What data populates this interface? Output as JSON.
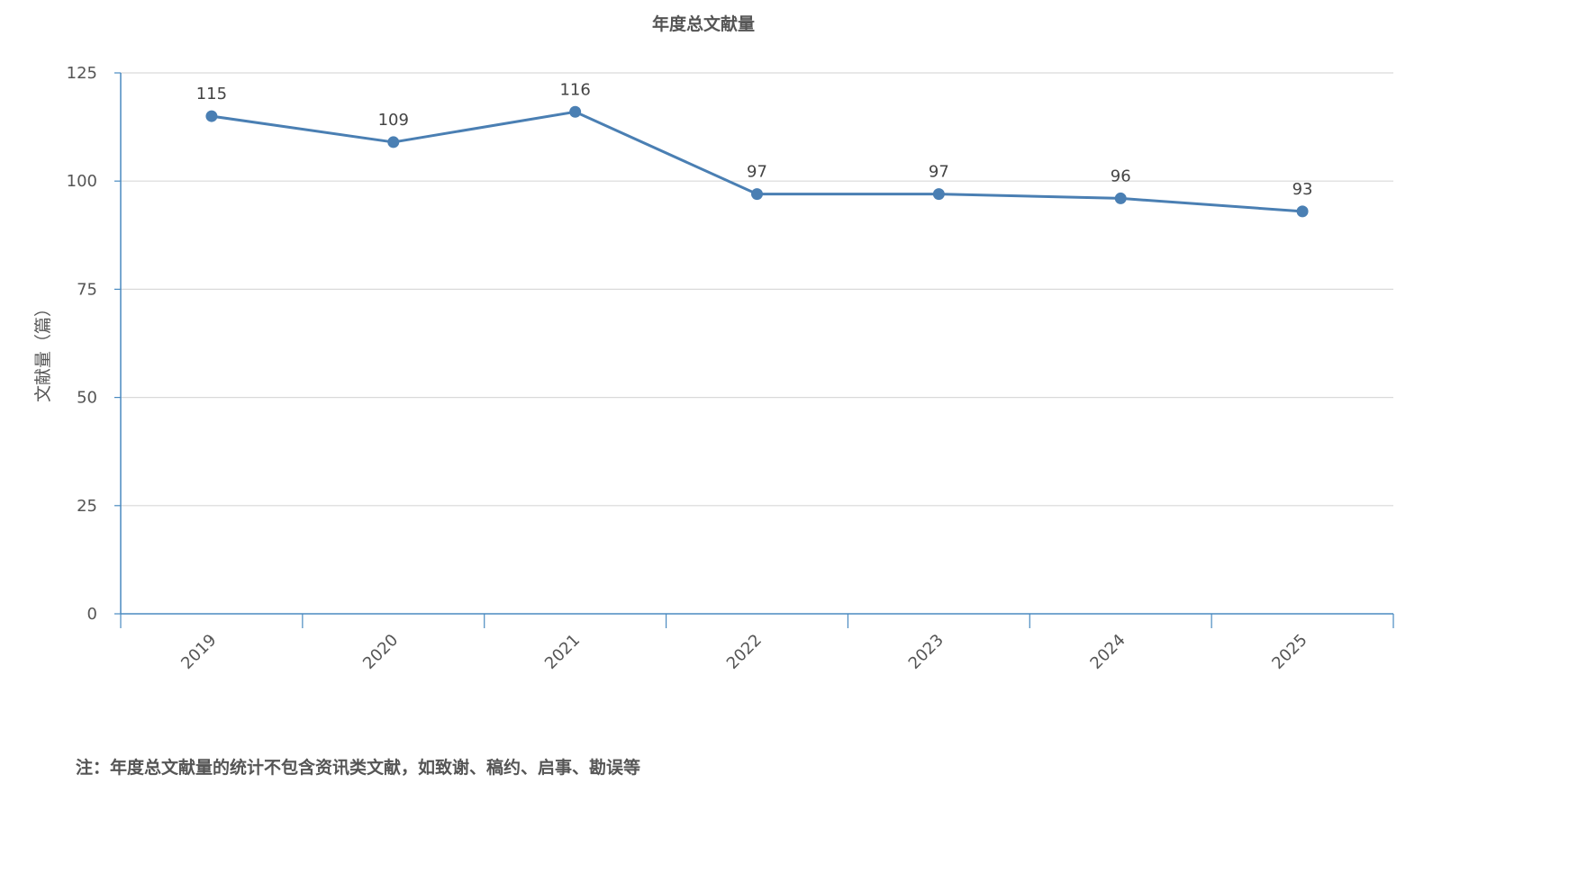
{
  "chart_data": {
    "type": "line",
    "title": "年度总文献量",
    "xlabel": "",
    "ylabel": "文献量（篇）",
    "categories": [
      "2019",
      "2020",
      "2021",
      "2022",
      "2023",
      "2024",
      "2025"
    ],
    "series": [
      {
        "values": [
          115,
          109,
          116,
          97,
          97,
          96,
          93
        ]
      }
    ],
    "ylim": [
      0,
      125
    ],
    "yticks": [
      0,
      25,
      50,
      75,
      100,
      125
    ],
    "grid": true,
    "data_labels": true,
    "colors": {
      "line": "#4a7fb3",
      "axis": "#4a8ac0",
      "grid": "#d9d9d9"
    }
  },
  "footnote": "注：年度总文献量的统计不包含资讯类文献，如致谢、稿约、启事、勘误等"
}
